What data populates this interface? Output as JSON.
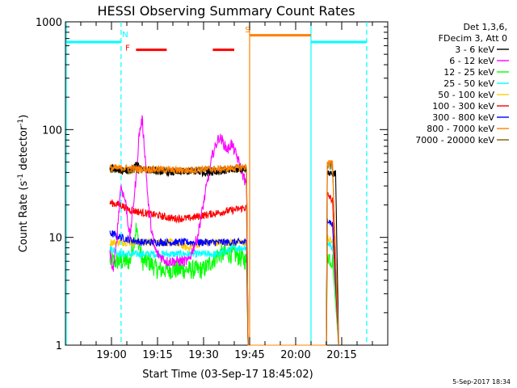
{
  "chart_data": {
    "type": "line",
    "title": "HESSI Observing Summary Count Rates",
    "xlabel": "Start Time (03-Sep-17 18:45:02)",
    "ylabel_main": "Count Rate (s",
    "ylabel_sup1": "-1",
    "ylabel_mid": " detector",
    "ylabel_sup2": "-1",
    "ylabel_end": ")",
    "yscale": "log",
    "ylim": [
      1,
      1000
    ],
    "xlim_minutes": [
      -15,
      90
    ],
    "x_ticks": [
      {
        "label": "19:00",
        "t": 0
      },
      {
        "label": "19:15",
        "t": 15
      },
      {
        "label": "19:30",
        "t": 30
      },
      {
        "label": "19:45",
        "t": 45
      },
      {
        "label": "20:00",
        "t": 60
      },
      {
        "label": "20:15",
        "t": 75
      }
    ],
    "y_ticks": [
      {
        "label": "1",
        "v": 1
      },
      {
        "label": "10",
        "v": 10
      },
      {
        "label": "100",
        "v": 100
      },
      {
        "label": "1000",
        "v": 1000
      }
    ],
    "legend_header": [
      "Det 1,3,6,",
      "FDecim 3, Att 0"
    ],
    "legend_position": "right",
    "series": [
      {
        "name": "3 - 6 keV",
        "color": "#000000",
        "x": [
          -0.5,
          3,
          6,
          8,
          10,
          15,
          20,
          25,
          30,
          35,
          40,
          44,
          44.5,
          70,
          70.3,
          71,
          72,
          73,
          74
        ],
        "y": [
          45,
          41,
          42,
          47,
          44,
          41,
          40,
          41,
          40,
          41,
          42,
          44,
          1,
          1,
          38,
          40,
          39,
          40,
          1
        ]
      },
      {
        "name": "6 - 12 keV",
        "color": "#ff00ff",
        "x": [
          -0.5,
          0.5,
          1.5,
          3,
          4.5,
          6,
          8,
          9,
          10,
          11,
          12,
          13,
          14,
          15,
          18,
          21,
          25,
          28,
          31,
          33,
          35,
          36,
          37,
          38,
          39,
          41,
          42,
          44,
          44.5
        ],
        "y": [
          7,
          5,
          8,
          30,
          22,
          10,
          35,
          90,
          125,
          55,
          20,
          12,
          8,
          7,
          6,
          6,
          6,
          10,
          30,
          60,
          85,
          80,
          70,
          65,
          75,
          55,
          45,
          30,
          1
        ]
      },
      {
        "name": "12 - 25 keV",
        "color": "#00ff00",
        "x": [
          -0.5,
          3,
          6,
          8,
          10,
          12,
          15,
          20,
          25,
          30,
          35,
          40,
          44,
          44.5,
          70,
          70.3,
          72,
          74
        ],
        "y": [
          6,
          6,
          6,
          12,
          6,
          6,
          5,
          5,
          5,
          5,
          7,
          7,
          6,
          1,
          1,
          7,
          6,
          1
        ]
      },
      {
        "name": "25 - 50 keV",
        "color": "#00ffff",
        "x": [
          -0.5,
          3,
          6,
          10,
          15,
          20,
          25,
          30,
          35,
          40,
          44,
          44.5,
          70,
          70.3,
          72,
          74
        ],
        "y": [
          8,
          7,
          7,
          7,
          7,
          7,
          7,
          7,
          7,
          8,
          8,
          1,
          1,
          9,
          8,
          1
        ]
      },
      {
        "name": "50 - 100 keV",
        "color": "#ffcc00",
        "x": [
          -0.5,
          3,
          6,
          10,
          15,
          20,
          25,
          30,
          35,
          40,
          44,
          44.5,
          70,
          70.3,
          72,
          74
        ],
        "y": [
          9,
          9,
          9,
          9,
          9,
          9,
          8,
          9,
          9,
          9,
          9,
          1,
          1,
          10,
          9,
          1
        ]
      },
      {
        "name": "100 - 300 keV",
        "color": "#ff0000",
        "x": [
          -0.5,
          3,
          6,
          10,
          15,
          20,
          25,
          30,
          35,
          40,
          44,
          44.5,
          70,
          70.3,
          72,
          74
        ],
        "y": [
          21,
          20,
          18,
          17,
          16,
          15,
          15,
          16,
          17,
          18,
          19,
          1,
          1,
          25,
          22,
          1
        ]
      },
      {
        "name": "300 - 800 keV",
        "color": "#0000ff",
        "x": [
          -0.5,
          3,
          6,
          10,
          15,
          20,
          25,
          30,
          35,
          40,
          44,
          44.5,
          70,
          70.3,
          72,
          74
        ],
        "y": [
          11,
          10,
          9.5,
          9,
          9,
          9,
          9,
          9,
          9,
          9,
          9,
          1,
          1,
          15,
          13,
          1
        ]
      },
      {
        "name": "800 - 7000 keV",
        "color": "#ff8000",
        "x": [
          -0.5,
          3,
          6,
          10,
          15,
          20,
          25,
          30,
          35,
          40,
          44,
          44.5,
          70,
          70.3,
          72,
          74
        ],
        "y": [
          44,
          44,
          44,
          43,
          43,
          42,
          42,
          43,
          43,
          44,
          45,
          1,
          1,
          50,
          48,
          1
        ]
      },
      {
        "name": "7000 - 20000 keV",
        "color": "#806000",
        "x": [
          -0.5,
          3,
          6,
          10,
          15,
          20,
          25,
          30,
          35,
          40,
          44,
          44.5,
          70,
          70.3,
          72,
          74
        ],
        "y": [
          42,
          42,
          42,
          42,
          42,
          41,
          41,
          42,
          42,
          43,
          43,
          1,
          1,
          46,
          45,
          1
        ]
      }
    ],
    "night_intervals": [
      {
        "start": -15,
        "end": 3,
        "level": 650
      },
      {
        "start": 65,
        "end": 83,
        "level": 650
      }
    ],
    "saa_interval": {
      "start": 45,
      "end": 65,
      "level": 750,
      "color": "#ff8000"
    },
    "flare_intervals": [
      {
        "start": 8,
        "end": 18,
        "level": 550
      },
      {
        "start": 33,
        "end": 40,
        "level": 550
      }
    ],
    "markers": [
      {
        "text": "N",
        "t": 3.5,
        "v": 720,
        "color": "#00ffff"
      },
      {
        "text": "F",
        "t": 4.5,
        "v": 540,
        "color": "#ff0000"
      },
      {
        "text": "S",
        "t": 43.5,
        "v": 800,
        "color": "#ff8000"
      }
    ],
    "colors": {
      "night": "#00ffff",
      "flare": "#ff0000",
      "saa": "#ff8000",
      "dash": "#00ffff"
    }
  },
  "footer_timestamp": "5-Sep-2017 18:34"
}
